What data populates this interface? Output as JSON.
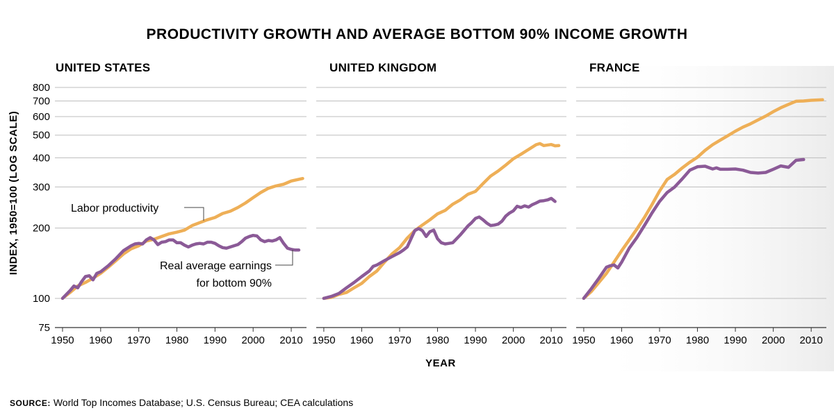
{
  "chart_data": {
    "type": "line",
    "title": "PRODUCTIVITY GROWTH AND AVERAGE BOTTOM 90% INCOME GROWTH",
    "ylabel": "INDEX, 1950=100 (LOG SCALE)",
    "xlabel": "YEAR",
    "yscale": "log",
    "ylim": [
      75,
      800
    ],
    "xlim": [
      1948,
      2014
    ],
    "yticks": [
      75,
      100,
      200,
      300,
      400,
      500,
      600,
      700,
      800
    ],
    "ytick_labels": [
      "75",
      "100",
      "200",
      "300",
      "400",
      "500",
      "600",
      "700",
      "800"
    ],
    "xticks": [
      1950,
      1960,
      1970,
      1980,
      1990,
      2000,
      2010
    ],
    "xtick_labels": [
      "1950",
      "1960",
      "1970",
      "1980",
      "1990",
      "2000",
      "2010"
    ],
    "colors": {
      "productivity": "#eeaf57",
      "earnings": "#8b5a97",
      "grid": "#bdbdbd",
      "axis": "#333333"
    },
    "annotations": {
      "productivity_label": "Labor productivity",
      "earnings_label_line1": "Real average earnings",
      "earnings_label_line2": "for bottom 90%"
    },
    "source_label": "SOURCE:",
    "source_text": "World Top Incomes Database; U.S. Census Bureau; CEA calculations",
    "panels": [
      {
        "name": "UNITED STATES",
        "series": [
          {
            "name": "Labor productivity",
            "key": "productivity",
            "x": [
              1950,
              1952,
              1954,
              1956,
              1958,
              1960,
              1962,
              1964,
              1966,
              1968,
              1970,
              1972,
              1974,
              1976,
              1978,
              1980,
              1982,
              1984,
              1986,
              1988,
              1990,
              1992,
              1994,
              1996,
              1998,
              2000,
              2002,
              2004,
              2006,
              2008,
              2010,
              2013
            ],
            "y": [
              100,
              106,
              113,
              117,
              122,
              128,
              136,
              145,
              155,
              163,
              168,
              176,
              179,
              184,
              189,
              192,
              196,
              205,
              211,
              217,
              222,
              231,
              236,
              245,
              256,
              270,
              284,
              296,
              303,
              308,
              318,
              326
            ]
          },
          {
            "name": "Real average earnings for bottom 90%",
            "key": "earnings",
            "x": [
              1950,
              1952,
              1953,
              1954,
              1955,
              1956,
              1957,
              1958,
              1959,
              1960,
              1962,
              1964,
              1966,
              1968,
              1969,
              1970,
              1971,
              1972,
              1973,
              1974,
              1975,
              1976,
              1977,
              1978,
              1979,
              1980,
              1981,
              1982,
              1983,
              1984,
              1985,
              1986,
              1987,
              1988,
              1989,
              1990,
              1991,
              1992,
              1993,
              1994,
              1995,
              1996,
              1997,
              1998,
              1999,
              2000,
              2001,
              2002,
              2003,
              2004,
              2005,
              2006,
              2007,
              2008,
              2009,
              2010,
              2011,
              2012
            ],
            "y": [
              100,
              108,
              113,
              111,
              118,
              124,
              125,
              120,
              128,
              130,
              138,
              148,
              160,
              168,
              171,
              172,
              171,
              178,
              182,
              178,
              170,
              174,
              175,
              178,
              178,
              173,
              173,
              169,
              166,
              169,
              171,
              172,
              171,
              174,
              174,
              172,
              168,
              165,
              164,
              166,
              168,
              170,
              175,
              181,
              184,
              186,
              185,
              178,
              175,
              177,
              176,
              178,
              182,
              172,
              164,
              162,
              161,
              161
            ]
          }
        ]
      },
      {
        "name": "UNITED KINGDOM",
        "series": [
          {
            "name": "Labor productivity",
            "key": "productivity",
            "x": [
              1950,
              1952,
              1954,
              1956,
              1958,
              1960,
              1962,
              1964,
              1966,
              1968,
              1970,
              1972,
              1974,
              1976,
              1978,
              1980,
              1982,
              1984,
              1986,
              1988,
              1990,
              1992,
              1994,
              1996,
              1998,
              2000,
              2002,
              2004,
              2006,
              2007,
              2008,
              2010,
              2011,
              2012
            ],
            "y": [
              100,
              101,
              104,
              106,
              111,
              116,
              124,
              131,
              143,
              155,
              165,
              181,
              195,
              206,
              217,
              230,
              238,
              253,
              264,
              279,
              287,
              310,
              334,
              351,
              372,
              396,
              414,
              434,
              455,
              460,
              451,
              456,
              450,
              451
            ]
          },
          {
            "name": "Real average earnings for bottom 90%",
            "key": "earnings",
            "x": [
              1950,
              1952,
              1954,
              1956,
              1958,
              1960,
              1962,
              1963,
              1964,
              1966,
              1968,
              1970,
              1971,
              1972,
              1973,
              1974,
              1975,
              1976,
              1977,
              1978,
              1979,
              1980,
              1981,
              1982,
              1983,
              1984,
              1986,
              1988,
              1989,
              1990,
              1991,
              1992,
              1993,
              1994,
              1995,
              1996,
              1997,
              1998,
              1999,
              2000,
              2001,
              2002,
              2003,
              2004,
              2005,
              2006,
              2007,
              2008,
              2009,
              2010,
              2011
            ],
            "y": [
              100,
              102,
              105,
              111,
              117,
              124,
              131,
              137,
              139,
              145,
              151,
              157,
              161,
              166,
              180,
              195,
              199,
              195,
              184,
              193,
              196,
              180,
              173,
              171,
              172,
              173,
              187,
              204,
              211,
              220,
              223,
              217,
              210,
              205,
              206,
              208,
              214,
              225,
              232,
              237,
              248,
              245,
              249,
              246,
              252,
              256,
              261,
              262,
              264,
              268,
              260
            ]
          }
        ]
      },
      {
        "name": "FRANCE",
        "series": [
          {
            "name": "Labor productivity",
            "key": "productivity",
            "x": [
              1950,
              1952,
              1954,
              1956,
              1958,
              1960,
              1962,
              1964,
              1966,
              1968,
              1970,
              1972,
              1974,
              1976,
              1978,
              1980,
              1982,
              1984,
              1986,
              1988,
              1990,
              1992,
              1994,
              1996,
              1998,
              2000,
              2002,
              2004,
              2006,
              2008,
              2010,
              2013
            ],
            "y": [
              100,
              107,
              117,
              128,
              143,
              160,
              178,
              198,
              222,
              252,
              288,
              323,
              340,
              362,
              383,
              402,
              430,
              455,
              476,
              497,
              520,
              541,
              559,
              581,
              603,
              630,
              655,
              677,
              698,
              700,
              705,
              709
            ]
          },
          {
            "name": "Real average earnings for bottom 90%",
            "key": "earnings",
            "x": [
              1950,
              1952,
              1954,
              1956,
              1957,
              1958,
              1959,
              1960,
              1962,
              1964,
              1966,
              1968,
              1970,
              1972,
              1974,
              1976,
              1978,
              1980,
              1982,
              1984,
              1985,
              1986,
              1988,
              1990,
              1992,
              1994,
              1996,
              1998,
              2000,
              2002,
              2004,
              2006,
              2008
            ],
            "y": [
              100,
              110,
              122,
              136,
              138,
              139,
              135,
              143,
              164,
              182,
              205,
              232,
              260,
              284,
              300,
              325,
              354,
              366,
              368,
              358,
              362,
              357,
              357,
              358,
              354,
              346,
              344,
              346,
              357,
              369,
              364,
              390,
              393
            ]
          }
        ]
      }
    ]
  }
}
